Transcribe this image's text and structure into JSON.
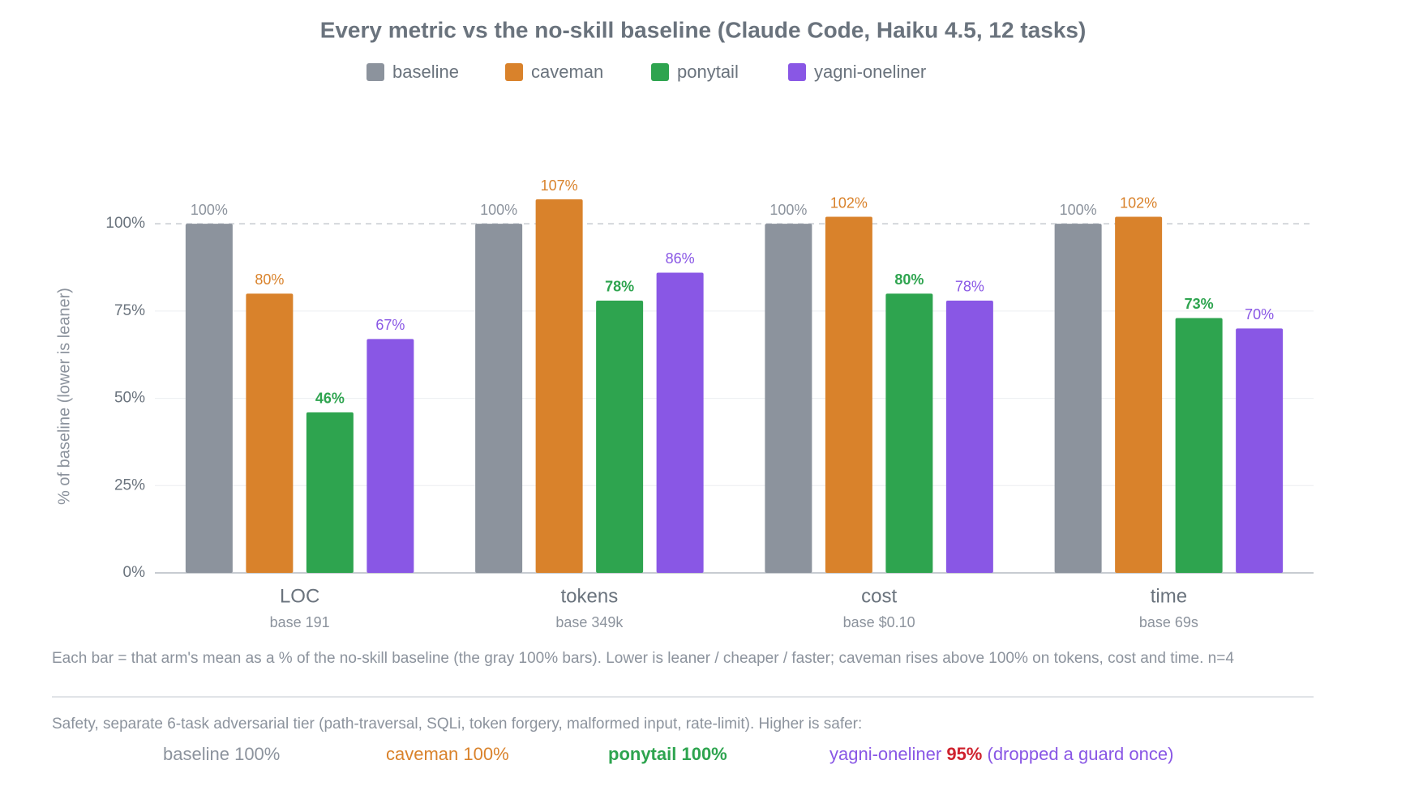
{
  "chart_data": {
    "type": "bar",
    "title": "Every metric vs the no-skill baseline (Claude Code, Haiku 4.5, 12 tasks)",
    "y_label": "% of baseline (lower is leaner)",
    "categories": [
      "LOC",
      "tokens",
      "cost",
      "time"
    ],
    "sublabels": [
      "base 191",
      "base 349k",
      "base $0.10",
      "base 69s"
    ],
    "series": [
      {
        "name": "baseline",
        "color": "#8c939d",
        "values": [
          100,
          100,
          100,
          100
        ],
        "value_labels": [
          "100%",
          "100%",
          "100%",
          "100%"
        ]
      },
      {
        "name": "caveman",
        "color": "#d9822b",
        "values": [
          80,
          107,
          102,
          102
        ],
        "value_labels": [
          "80%",
          "107%",
          "102%",
          "102%"
        ]
      },
      {
        "name": "ponytail",
        "color": "#2ea44f",
        "values": [
          46,
          78,
          80,
          73
        ],
        "value_labels": [
          "46%",
          "78%",
          "80%",
          "73%"
        ]
      },
      {
        "name": "yagni-oneliner",
        "color": "#8957e5",
        "values": [
          67,
          86,
          78,
          70
        ],
        "value_labels": [
          "67%",
          "86%",
          "78%",
          "70%"
        ]
      }
    ],
    "ylim": [
      0,
      120
    ],
    "yticks": [
      {
        "value": 0,
        "label": "0%"
      },
      {
        "value": 25,
        "label": "25%"
      },
      {
        "value": 50,
        "label": "50%"
      },
      {
        "value": 75,
        "label": "75%"
      },
      {
        "value": 100,
        "label": "100%"
      }
    ],
    "grid": true,
    "reference_line": 100,
    "legend": "top"
  },
  "footnote": "Each bar = that arm's mean as a % of the no-skill baseline (the gray 100% bars). Lower is leaner / cheaper / faster; caveman rises above 100% on tokens, cost and time. n=4",
  "safety": {
    "text": "Safety, separate 6-task adversarial tier (path-traversal, SQLi, token forgery, malformed input, rate-limit). Higher is safer:",
    "items": [
      {
        "name": "baseline",
        "value": "100%"
      },
      {
        "name": "caveman",
        "value": "100%"
      },
      {
        "name": "ponytail",
        "value": "100%"
      },
      {
        "name": "yagni-oneliner",
        "value": "95%"
      }
    ],
    "note": "(dropped a guard once)"
  }
}
